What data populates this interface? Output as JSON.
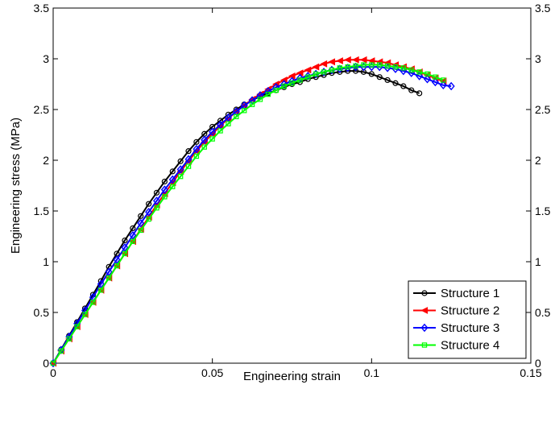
{
  "chart_data": {
    "type": "line",
    "title": "",
    "xlabel": "Engineering strain",
    "ylabel": "Engineering stress (MPa)",
    "xlim": [
      0,
      0.15
    ],
    "ylim": [
      0,
      3.5
    ],
    "xticks": [
      0,
      0.05,
      0.1,
      0.15
    ],
    "xtick_labels": [
      "0",
      "0.05",
      "0.1",
      "0.15"
    ],
    "yticks": [
      0,
      0.5,
      1,
      1.5,
      2,
      2.5,
      3,
      3.5
    ],
    "ytick_labels": [
      "0",
      "0.5",
      "1",
      "1.5",
      "2",
      "2.5",
      "3",
      "3.5"
    ],
    "right_axis_mirrored": true,
    "grid": false,
    "legend_position": "bottom-right",
    "series": [
      {
        "name": "Structure 1",
        "color": "#000000",
        "marker": "circle",
        "x": [
          0,
          0.0025,
          0.005,
          0.0075,
          0.01,
          0.0125,
          0.015,
          0.0175,
          0.02,
          0.0225,
          0.025,
          0.0275,
          0.03,
          0.0325,
          0.035,
          0.0375,
          0.04,
          0.0425,
          0.045,
          0.0475,
          0.05,
          0.0525,
          0.055,
          0.0575,
          0.06,
          0.0625,
          0.065,
          0.0675,
          0.07,
          0.0725,
          0.075,
          0.0775,
          0.08,
          0.0825,
          0.085,
          0.0875,
          0.09,
          0.0925,
          0.095,
          0.0975,
          0.1,
          0.1025,
          0.105,
          0.1075,
          0.11,
          0.1125,
          0.115
        ],
        "y": [
          0,
          0.135,
          0.27,
          0.405,
          0.54,
          0.675,
          0.81,
          0.95,
          1.08,
          1.21,
          1.33,
          1.45,
          1.57,
          1.68,
          1.79,
          1.89,
          1.99,
          2.09,
          2.18,
          2.26,
          2.33,
          2.39,
          2.45,
          2.5,
          2.55,
          2.59,
          2.63,
          2.66,
          2.69,
          2.72,
          2.75,
          2.77,
          2.8,
          2.82,
          2.84,
          2.86,
          2.87,
          2.88,
          2.88,
          2.87,
          2.85,
          2.82,
          2.79,
          2.76,
          2.73,
          2.69,
          2.66
        ]
      },
      {
        "name": "Structure 2",
        "color": "#ff0000",
        "marker": "triangle-left",
        "x": [
          0,
          0.0025,
          0.005,
          0.0075,
          0.01,
          0.0125,
          0.015,
          0.0175,
          0.02,
          0.0225,
          0.025,
          0.0275,
          0.03,
          0.0325,
          0.035,
          0.0375,
          0.04,
          0.0425,
          0.045,
          0.0475,
          0.05,
          0.0525,
          0.055,
          0.0575,
          0.06,
          0.0625,
          0.065,
          0.0675,
          0.07,
          0.0725,
          0.075,
          0.0775,
          0.08,
          0.0825,
          0.085,
          0.0875,
          0.09,
          0.0925,
          0.095,
          0.0975,
          0.1,
          0.1025,
          0.105,
          0.1075,
          0.11,
          0.1125,
          0.115,
          0.1175,
          0.12,
          0.1225
        ],
        "y": [
          0,
          0.12,
          0.24,
          0.36,
          0.48,
          0.6,
          0.72,
          0.84,
          0.96,
          1.08,
          1.2,
          1.32,
          1.44,
          1.56,
          1.67,
          1.78,
          1.89,
          1.99,
          2.09,
          2.18,
          2.26,
          2.34,
          2.41,
          2.48,
          2.54,
          2.6,
          2.65,
          2.7,
          2.75,
          2.79,
          2.83,
          2.86,
          2.89,
          2.92,
          2.95,
          2.97,
          2.98,
          2.99,
          2.99,
          2.99,
          2.98,
          2.97,
          2.96,
          2.94,
          2.92,
          2.9,
          2.87,
          2.84,
          2.81,
          2.78
        ]
      },
      {
        "name": "Structure 3",
        "color": "#0000ff",
        "marker": "diamond",
        "x": [
          0,
          0.0025,
          0.005,
          0.0075,
          0.01,
          0.0125,
          0.015,
          0.0175,
          0.02,
          0.0225,
          0.025,
          0.0275,
          0.03,
          0.0325,
          0.035,
          0.0375,
          0.04,
          0.0425,
          0.045,
          0.0475,
          0.05,
          0.0525,
          0.055,
          0.0575,
          0.06,
          0.0625,
          0.065,
          0.0675,
          0.07,
          0.0725,
          0.075,
          0.0775,
          0.08,
          0.0825,
          0.085,
          0.0875,
          0.09,
          0.0925,
          0.095,
          0.0975,
          0.1,
          0.1025,
          0.105,
          0.1075,
          0.11,
          0.1125,
          0.115,
          0.1175,
          0.12,
          0.1225,
          0.125
        ],
        "y": [
          0,
          0.13,
          0.26,
          0.39,
          0.52,
          0.65,
          0.78,
          0.9,
          1.02,
          1.14,
          1.26,
          1.38,
          1.49,
          1.6,
          1.71,
          1.81,
          1.91,
          2.01,
          2.11,
          2.2,
          2.28,
          2.35,
          2.42,
          2.48,
          2.54,
          2.59,
          2.64,
          2.68,
          2.72,
          2.75,
          2.78,
          2.81,
          2.83,
          2.85,
          2.87,
          2.89,
          2.9,
          2.91,
          2.92,
          2.92,
          2.92,
          2.92,
          2.91,
          2.9,
          2.88,
          2.86,
          2.83,
          2.8,
          2.77,
          2.74,
          2.73
        ]
      },
      {
        "name": "Structure 4",
        "color": "#00ff00",
        "marker": "square",
        "x": [
          0,
          0.0025,
          0.005,
          0.0075,
          0.01,
          0.0125,
          0.015,
          0.0175,
          0.02,
          0.0225,
          0.025,
          0.0275,
          0.03,
          0.0325,
          0.035,
          0.0375,
          0.04,
          0.0425,
          0.045,
          0.0475,
          0.05,
          0.0525,
          0.055,
          0.0575,
          0.06,
          0.0625,
          0.065,
          0.0675,
          0.07,
          0.0725,
          0.075,
          0.0775,
          0.08,
          0.0825,
          0.085,
          0.0875,
          0.09,
          0.0925,
          0.095,
          0.0975,
          0.1,
          0.1025,
          0.105,
          0.1075,
          0.11,
          0.1125,
          0.115,
          0.1175,
          0.12,
          0.1225
        ],
        "y": [
          0,
          0.12,
          0.24,
          0.36,
          0.48,
          0.6,
          0.72,
          0.84,
          0.96,
          1.08,
          1.2,
          1.31,
          1.42,
          1.53,
          1.64,
          1.74,
          1.84,
          1.94,
          2.04,
          2.13,
          2.21,
          2.29,
          2.36,
          2.43,
          2.49,
          2.55,
          2.6,
          2.65,
          2.69,
          2.73,
          2.76,
          2.79,
          2.82,
          2.85,
          2.87,
          2.89,
          2.91,
          2.92,
          2.93,
          2.94,
          2.94,
          2.94,
          2.93,
          2.92,
          2.91,
          2.89,
          2.87,
          2.85,
          2.82,
          2.79
        ]
      }
    ]
  }
}
